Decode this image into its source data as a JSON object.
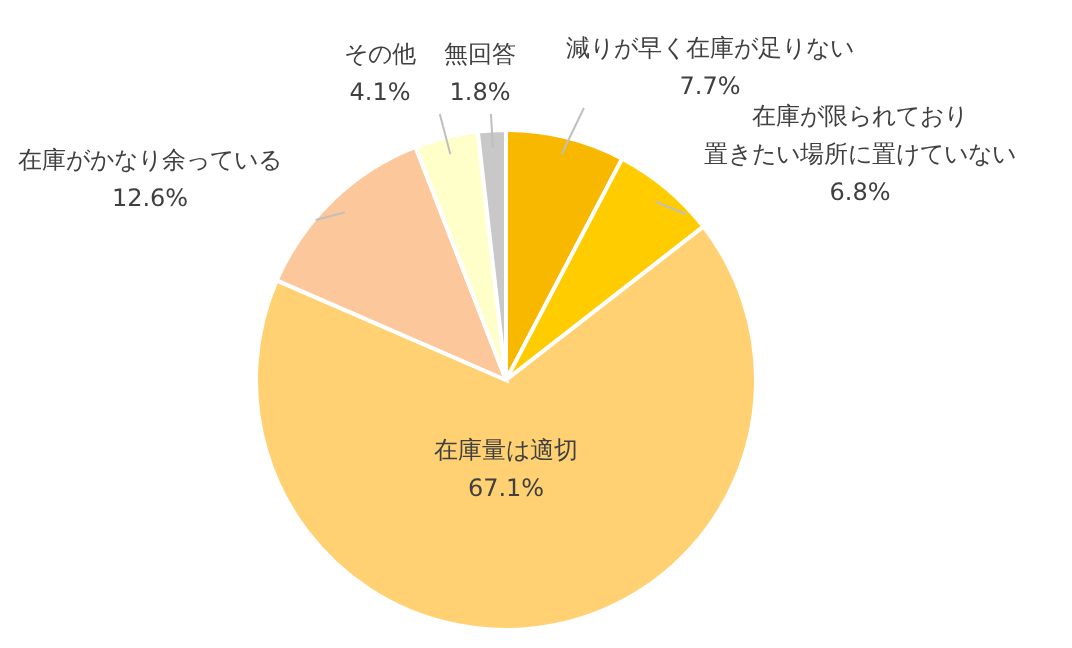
{
  "chart_data": {
    "type": "pie",
    "categories": [
      "減りが早く在庫が足りない",
      "在庫が限られており置きたい場所に置けていない",
      "在庫量は適切",
      "在庫がかなり余っている",
      "その他",
      "無回答"
    ],
    "values": [
      7.7,
      6.8,
      67.1,
      12.6,
      4.1,
      1.8
    ],
    "colors": [
      "#f8b800",
      "#ffcc00",
      "#ffd173",
      "#fcc89b",
      "#ffffc9",
      "#c8c8c8"
    ],
    "value_labels": [
      "7.7%",
      "6.8%",
      "67.1%",
      "12.6%",
      "4.1%",
      "1.8%"
    ]
  }
}
